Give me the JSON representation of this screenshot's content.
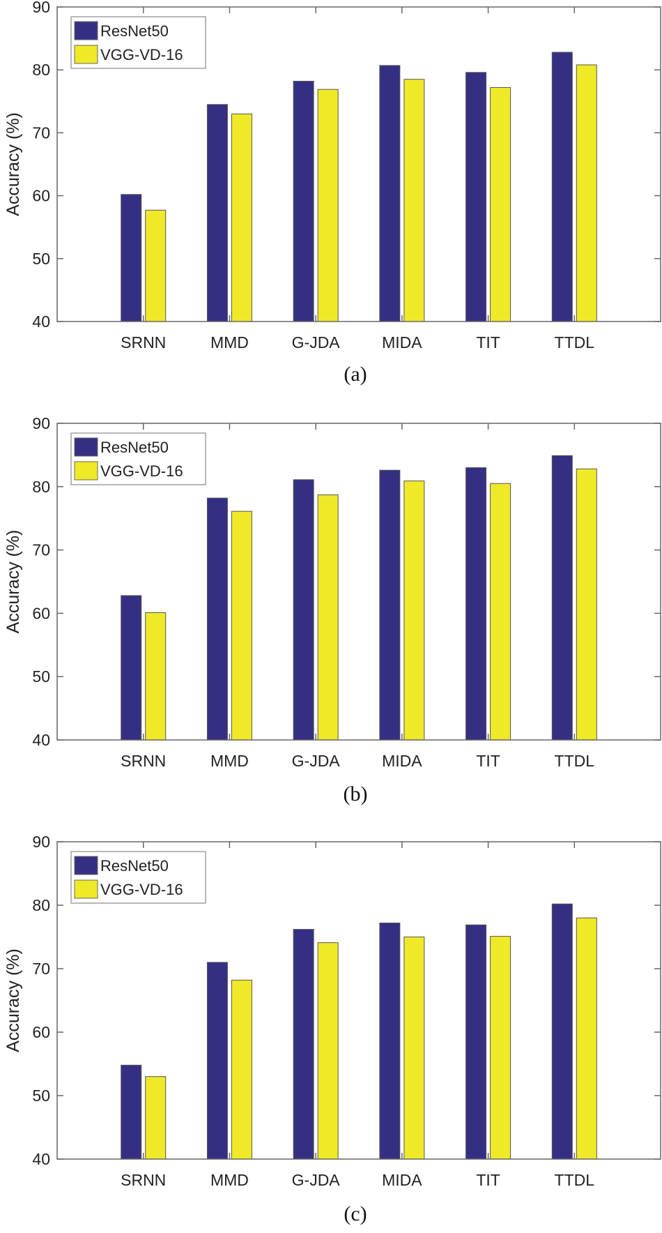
{
  "chart_data": [
    {
      "type": "bar",
      "caption": "(a)",
      "ylabel": "Accuracy (%)",
      "ylim": [
        40,
        90
      ],
      "yticks": [
        40,
        50,
        60,
        70,
        80,
        90
      ],
      "categories": [
        "SRNN",
        "MMD",
        "G-JDA",
        "MIDA",
        "TIT",
        "TTDL"
      ],
      "legend_position": "top-left",
      "grid": false,
      "series": [
        {
          "name": "ResNet50",
          "color": "#352f84",
          "values": [
            60.2,
            74.5,
            78.2,
            80.7,
            79.6,
            82.8
          ]
        },
        {
          "name": "VGG-VD-16",
          "color": "#f0e927",
          "values": [
            57.7,
            73.0,
            76.9,
            78.5,
            77.2,
            80.8
          ]
        }
      ]
    },
    {
      "type": "bar",
      "caption": "(b)",
      "ylabel": "Accuracy (%)",
      "ylim": [
        40,
        90
      ],
      "yticks": [
        40,
        50,
        60,
        70,
        80,
        90
      ],
      "categories": [
        "SRNN",
        "MMD",
        "G-JDA",
        "MIDA",
        "TIT",
        "TTDL"
      ],
      "legend_position": "top-left",
      "grid": false,
      "series": [
        {
          "name": "ResNet50",
          "color": "#352f84",
          "values": [
            62.8,
            78.2,
            81.1,
            82.6,
            83.0,
            84.9
          ]
        },
        {
          "name": "VGG-VD-16",
          "color": "#f0e927",
          "values": [
            60.1,
            76.1,
            78.7,
            80.9,
            80.5,
            82.8
          ]
        }
      ]
    },
    {
      "type": "bar",
      "caption": "(c)",
      "ylabel": "Accuracy (%)",
      "ylim": [
        40,
        90
      ],
      "yticks": [
        40,
        50,
        60,
        70,
        80,
        90
      ],
      "categories": [
        "SRNN",
        "MMD",
        "G-JDA",
        "MIDA",
        "TIT",
        "TTDL"
      ],
      "legend_position": "top-left",
      "grid": false,
      "series": [
        {
          "name": "ResNet50",
          "color": "#352f84",
          "values": [
            54.8,
            71.0,
            76.2,
            77.2,
            76.9,
            80.2
          ]
        },
        {
          "name": "VGG-VD-16",
          "color": "#f0e927",
          "values": [
            53.0,
            68.2,
            74.1,
            75.0,
            75.1,
            78.0
          ]
        }
      ]
    }
  ]
}
